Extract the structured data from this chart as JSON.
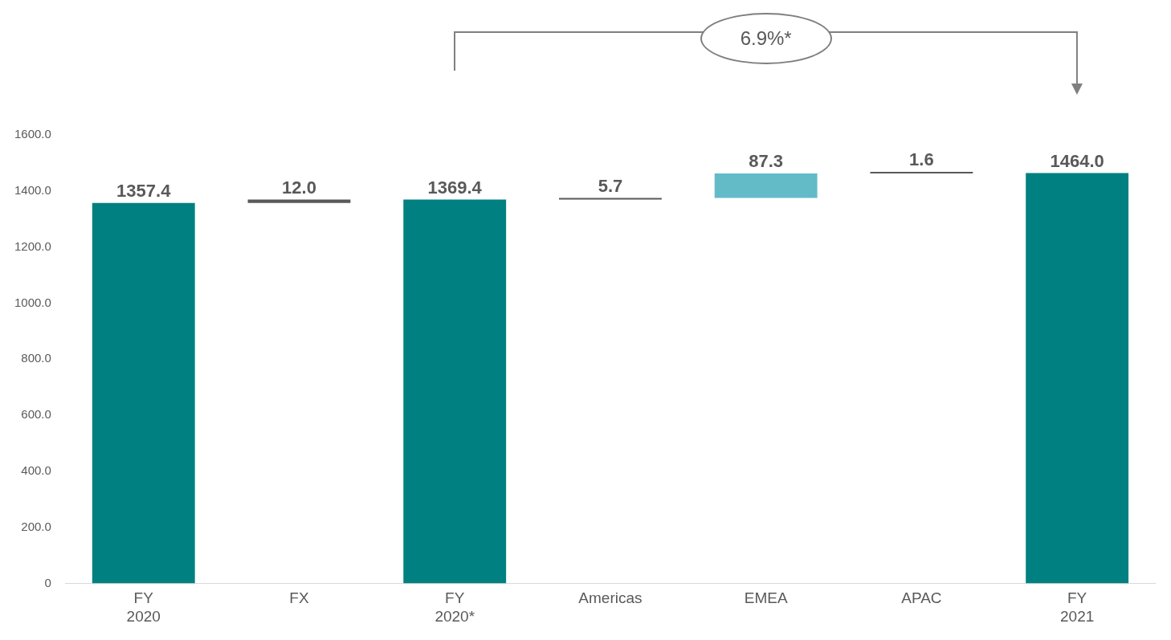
{
  "chart_data": {
    "type": "bar",
    "categories": [
      "FY 2020",
      "FX",
      "FY 2020*",
      "Americas",
      "EMEA",
      "APAC",
      "FY 2021"
    ],
    "values": [
      1357.4,
      12.0,
      1369.4,
      5.7,
      87.3,
      1.6,
      1464.0
    ],
    "base": [
      0,
      1357.4,
      0,
      1369.4,
      1375.1,
      1462.4,
      0
    ],
    "colors": [
      "#008080",
      "#595959",
      "#008080",
      "#595959",
      "#63bbc8",
      "#595959",
      "#008080"
    ],
    "value_labels": [
      "1357.4",
      "12.0",
      "1369.4",
      "5.7",
      "87.3",
      "1.6",
      "1464.0"
    ],
    "ylim": [
      0,
      1600
    ],
    "yticks": [
      0,
      {
        "value": 200,
        "label": "200.0"
      },
      {
        "value": 400,
        "label": "400.0"
      },
      {
        "value": 600,
        "label": "600.0"
      },
      {
        "value": 800,
        "label": "800.0"
      },
      {
        "value": 1000,
        "label": "1000.0"
      },
      {
        "value": 1200,
        "label": "1200.0"
      },
      {
        "value": 1400,
        "label": "1400.0"
      },
      {
        "value": 1600,
        "label": "1600.0"
      }
    ],
    "annotations": [
      "6.9%*"
    ],
    "grid": false,
    "legend": false
  }
}
